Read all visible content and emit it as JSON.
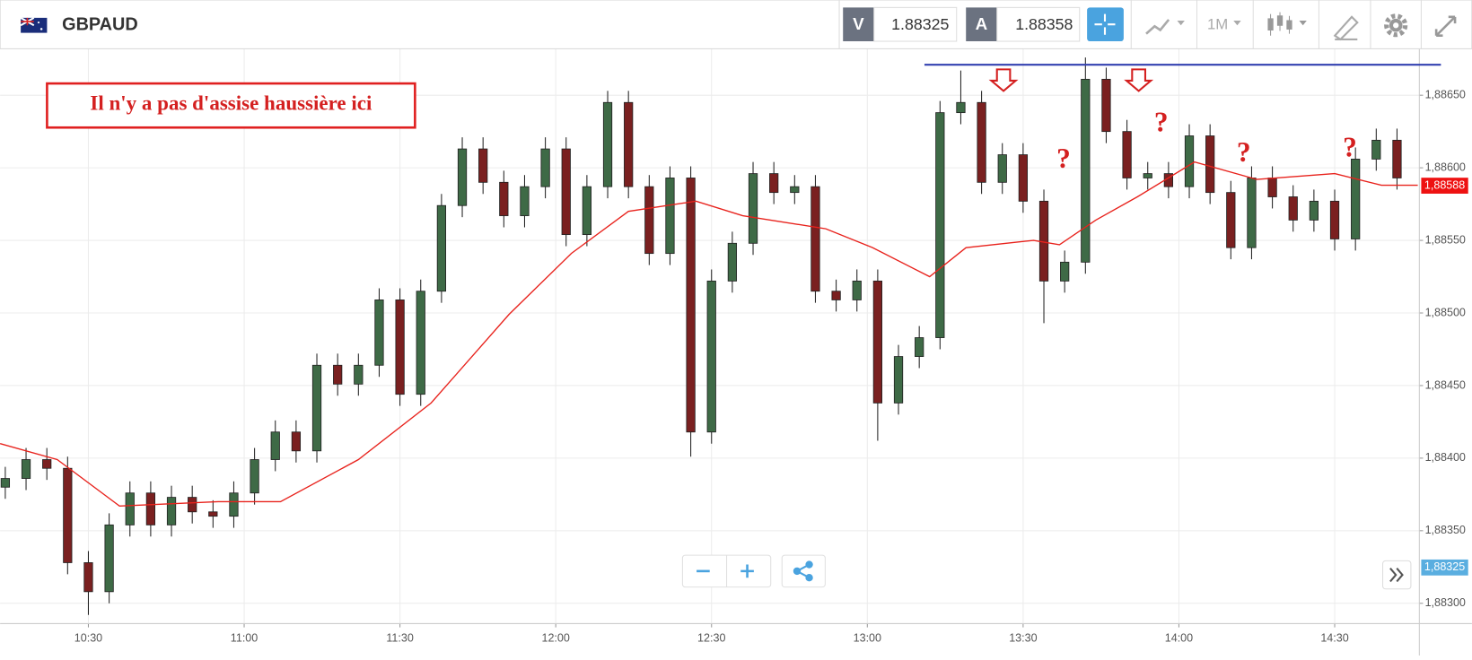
{
  "header": {
    "symbol": "GBPAUD",
    "bid_label": "V",
    "bid": 1.88325,
    "ask_label": "A",
    "ask": 1.88358,
    "timeframe": "1M"
  },
  "chart_data": {
    "type": "candlestick",
    "x": [
      614,
      618,
      622,
      626,
      630,
      634,
      638,
      642,
      646,
      650,
      654,
      658,
      662,
      666,
      670,
      674,
      678,
      682,
      686,
      690,
      694,
      698,
      702,
      706,
      710,
      714,
      718,
      722,
      726,
      730,
      734,
      738,
      742,
      746,
      750,
      754,
      758,
      762,
      766,
      770,
      774,
      778,
      782,
      786,
      790,
      794,
      798,
      802,
      806,
      810,
      814,
      818,
      822,
      826,
      830,
      834,
      838,
      842,
      846,
      850,
      854,
      858,
      862,
      866,
      870,
      874,
      878,
      882
    ],
    "open": [
      1.8838,
      1.88386,
      1.88399,
      1.88393,
      1.88328,
      1.88308,
      1.88354,
      1.88376,
      1.88354,
      1.88373,
      1.88363,
      1.8836,
      1.88376,
      1.88399,
      1.88418,
      1.88405,
      1.88464,
      1.88451,
      1.88464,
      1.88509,
      1.88444,
      1.88515,
      1.88574,
      1.88613,
      1.8859,
      1.88567,
      1.88587,
      1.88613,
      1.88554,
      1.88587,
      1.88645,
      1.88587,
      1.88541,
      1.88593,
      1.88418,
      1.88522,
      1.88548,
      1.88596,
      1.88583,
      1.88587,
      1.88515,
      1.88509,
      1.88522,
      1.88438,
      1.8847,
      1.88483,
      1.88638,
      1.88645,
      1.8859,
      1.88609,
      1.88577,
      1.88522,
      1.88535,
      1.88661,
      1.88625,
      1.88593,
      1.88596,
      1.88587,
      1.88622,
      1.88583,
      1.88545,
      1.88593,
      1.8858,
      1.88564,
      1.88577,
      1.88551,
      1.88606,
      1.88619
    ],
    "high": [
      1.88394,
      1.88407,
      1.88407,
      1.88401,
      1.88336,
      1.88362,
      1.88384,
      1.88384,
      1.88381,
      1.88381,
      1.88371,
      1.88384,
      1.88407,
      1.88426,
      1.88426,
      1.88472,
      1.88472,
      1.88472,
      1.88517,
      1.88517,
      1.88523,
      1.88582,
      1.88621,
      1.88621,
      1.88598,
      1.88595,
      1.88621,
      1.88621,
      1.88595,
      1.88653,
      1.88653,
      1.88595,
      1.88601,
      1.88601,
      1.8853,
      1.88556,
      1.88604,
      1.88604,
      1.88595,
      1.88595,
      1.88523,
      1.8853,
      1.8853,
      1.88478,
      1.88491,
      1.88646,
      1.88667,
      1.88653,
      1.88617,
      1.88617,
      1.88585,
      1.88543,
      1.88676,
      1.88669,
      1.88633,
      1.88604,
      1.88604,
      1.8863,
      1.8863,
      1.88591,
      1.88601,
      1.88601,
      1.88588,
      1.88585,
      1.88585,
      1.88614,
      1.88627,
      1.88627
    ],
    "low": [
      1.88372,
      1.88378,
      1.88385,
      1.8832,
      1.88292,
      1.883,
      1.88346,
      1.88346,
      1.88346,
      1.88355,
      1.88352,
      1.88352,
      1.88368,
      1.88391,
      1.88397,
      1.88397,
      1.88443,
      1.88443,
      1.88456,
      1.88436,
      1.88436,
      1.88507,
      1.88566,
      1.88582,
      1.88559,
      1.88559,
      1.88579,
      1.88546,
      1.88546,
      1.88579,
      1.88579,
      1.88533,
      1.88533,
      1.88401,
      1.8841,
      1.88514,
      1.8854,
      1.88575,
      1.88575,
      1.88507,
      1.88501,
      1.88501,
      1.88412,
      1.8843,
      1.88462,
      1.88475,
      1.8863,
      1.88582,
      1.88582,
      1.88569,
      1.88493,
      1.88514,
      1.88527,
      1.88617,
      1.88585,
      1.88585,
      1.88579,
      1.88579,
      1.88575,
      1.88537,
      1.88537,
      1.88572,
      1.88556,
      1.88556,
      1.88543,
      1.88543,
      1.88598,
      1.88585
    ],
    "close": [
      1.88386,
      1.88399,
      1.88393,
      1.88328,
      1.88308,
      1.88354,
      1.88376,
      1.88354,
      1.88373,
      1.88363,
      1.8836,
      1.88376,
      1.88399,
      1.88418,
      1.88405,
      1.88464,
      1.88451,
      1.88464,
      1.88509,
      1.88444,
      1.88515,
      1.88574,
      1.88613,
      1.8859,
      1.88567,
      1.88587,
      1.88613,
      1.88554,
      1.88587,
      1.88645,
      1.88587,
      1.88541,
      1.88593,
      1.88418,
      1.88522,
      1.88548,
      1.88596,
      1.88583,
      1.88587,
      1.88515,
      1.88509,
      1.88522,
      1.88438,
      1.8847,
      1.88483,
      1.88638,
      1.88645,
      1.8859,
      1.88609,
      1.88577,
      1.88522,
      1.88535,
      1.88661,
      1.88625,
      1.88593,
      1.88596,
      1.88587,
      1.88622,
      1.88583,
      1.88545,
      1.88593,
      1.8858,
      1.88564,
      1.88577,
      1.88551,
      1.88606,
      1.88619,
      1.88593
    ],
    "up_color": "#3e6a46",
    "down_color": "#7a2020",
    "ma": {
      "color": "#e8221c",
      "x": [
        613,
        624,
        636,
        655,
        667,
        682,
        696,
        711,
        723,
        734,
        747,
        756,
        772,
        781,
        792,
        799,
        812,
        817,
        824,
        832,
        843,
        855,
        870,
        879,
        886
      ],
      "values": [
        1.8841,
        1.88399,
        1.88367,
        1.8837,
        1.8837,
        1.88399,
        1.88438,
        1.88499,
        1.88541,
        1.8857,
        1.88577,
        1.88567,
        1.88558,
        1.88545,
        1.88525,
        1.88545,
        1.8855,
        1.88547,
        1.88564,
        1.8858,
        1.88604,
        1.88592,
        1.88596,
        1.88588,
        1.88588
      ]
    },
    "level": {
      "value": 1.88671,
      "x0": 791,
      "color": "#3340b0"
    },
    "price_labels": [
      {
        "value": 1.88588,
        "label": "1,88588",
        "color": "#ee1111"
      },
      {
        "value": 1.88325,
        "label": "1,88325",
        "color": "#5aaee0"
      }
    ],
    "xlim": [
      613,
      886.3
    ],
    "xticks": [
      {
        "value": 630,
        "label": "10:30"
      },
      {
        "value": 660,
        "label": "11:00"
      },
      {
        "value": 690,
        "label": "11:30"
      },
      {
        "value": 720,
        "label": "12:00"
      },
      {
        "value": 750,
        "label": "12:30"
      },
      {
        "value": 780,
        "label": "13:00"
      },
      {
        "value": 810,
        "label": "13:30"
      },
      {
        "value": 840,
        "label": "14:00"
      },
      {
        "value": 870,
        "label": "14:30"
      }
    ],
    "ylim": [
      1.88286,
      1.88682
    ],
    "yticks": [
      {
        "value": 1.883,
        "label": "1,88300"
      },
      {
        "value": 1.8835,
        "label": "1,88350"
      },
      {
        "value": 1.884,
        "label": "1,88400"
      },
      {
        "value": 1.8845,
        "label": "1,88450"
      },
      {
        "value": 1.885,
        "label": "1,88500"
      },
      {
        "value": 1.8855,
        "label": "1,88550"
      },
      {
        "value": 1.886,
        "label": "1,88600"
      },
      {
        "value": 1.8865,
        "label": "1,88650"
      }
    ],
    "grid": true,
    "annotations": {
      "box": "Il n'y a pas d'assise haussière ici",
      "marks": [
        "?",
        "?",
        "?",
        "?"
      ]
    }
  }
}
